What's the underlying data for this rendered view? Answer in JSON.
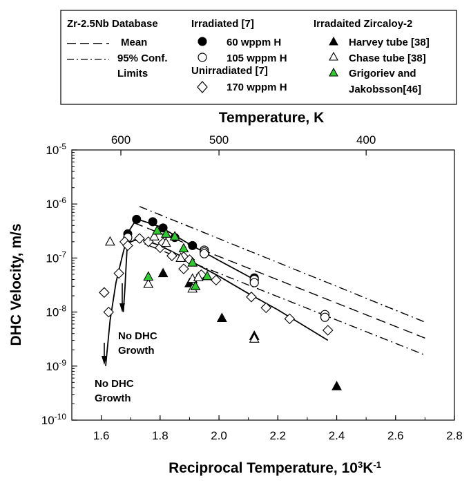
{
  "chart_data": {
    "type": "scatter",
    "xlabel": "Reciprocal Temperature, 10",
    "xlabel_sup1": "3",
    "xlabel_mid": "K",
    "xlabel_sup2": "-1",
    "ylabel": "DHC Velocity, m/s",
    "top_axis_label": "Temperature, K",
    "x_range": [
      1.5,
      2.8
    ],
    "y_range_log10": [
      -10,
      -5
    ],
    "y_scale": "log",
    "x_ticks": [
      1.6,
      1.8,
      2.0,
      2.2,
      2.4,
      2.6,
      2.8
    ],
    "x_tick_labels": [
      "1.6",
      "1.8",
      "2.0",
      "2.2",
      "2.4",
      "2.6",
      "2.8"
    ],
    "y_tick_base": "10",
    "y_tick_exponents": [
      "-10",
      "-9",
      "-8",
      "-7",
      "-6",
      "-5"
    ],
    "top_ticks_K": [
      600,
      500,
      400
    ],
    "top_tick_labels": [
      "600",
      "500",
      "400"
    ],
    "grid": false,
    "legend_position": "top",
    "legend": {
      "col1_title": "Zr-2.5Nb Database",
      "mean_label": "Mean",
      "conf_label_1": "95% Conf.",
      "conf_label_2": "Limits",
      "col2_title": "Irradiated [7]",
      "s60_label": "60 wppm H",
      "s105_label": "105 wppm H",
      "col2_title_b": "Unirradiated [7]",
      "s170_label": "170 wppm H",
      "col3_title": "Irradaited Zircaloy-2",
      "harvey_label": "Harvey tube [38]",
      "chase_label": "Chase tube [38]",
      "grig_label_1": "Grigoriev and",
      "grig_label_2": "Jakobsson[46]"
    },
    "annotations": [
      {
        "id": "nodhc1",
        "line1": "No DHC",
        "line2": "Growth"
      },
      {
        "id": "nodhc2",
        "line1": "No DHC",
        "line2": "Growth"
      }
    ],
    "colors": {
      "green": "#2ecc2e",
      "black": "#000000"
    },
    "series": [
      {
        "name": "60 wppm H",
        "marker": "filled-circle",
        "x": [
          1.69,
          1.72,
          1.775,
          1.81,
          1.85,
          1.91,
          2.12
        ],
        "y": [
          2.8e-07,
          5.2e-07,
          4.7e-07,
          3.6e-07,
          2.4e-07,
          1.7e-07,
          4.3e-08
        ]
      },
      {
        "name": "105 wppm H",
        "marker": "open-circle",
        "x": [
          1.69,
          1.95,
          1.95,
          1.95,
          2.12,
          2.12,
          2.36,
          2.36
        ],
        "y": [
          2.4e-07,
          1.4e-07,
          1.3e-07,
          1.2e-07,
          4e-08,
          3.5e-08,
          9e-09,
          8e-09
        ]
      },
      {
        "name": "170 wppm H",
        "marker": "open-diamond",
        "x": [
          1.61,
          1.625,
          1.66,
          1.68,
          1.69,
          1.73,
          1.76,
          1.8,
          1.81,
          1.84,
          1.88,
          1.88,
          1.9,
          1.94,
          1.99,
          2.11,
          2.16,
          2.24,
          2.37
        ],
        "y": [
          2.3e-08,
          1e-08,
          5.2e-08,
          2e-07,
          1.7e-07,
          2.3e-07,
          2e-07,
          1.55e-07,
          1.9e-07,
          1.1e-07,
          6.3e-08,
          1.05e-07,
          9.3e-08,
          4.9e-08,
          3.9e-08,
          1.9e-08,
          1.2e-08,
          7.5e-09,
          4.6e-09
        ]
      },
      {
        "name": "Harvey tube [38]",
        "marker": "filled-triangle",
        "x": [
          1.81,
          1.9,
          2.01,
          2.12,
          2.4
        ],
        "y": [
          5.2e-08,
          3.4e-08,
          7.7e-09,
          3.6e-09,
          4.2e-10
        ]
      },
      {
        "name": "Chase tube [38]",
        "marker": "open-triangle",
        "x": [
          1.63,
          1.76,
          1.78,
          1.82,
          1.87,
          1.91,
          1.91,
          1.93,
          2.12
        ],
        "y": [
          2e-07,
          3.3e-08,
          2.5e-07,
          1.9e-07,
          1e-07,
          2.7e-08,
          4.1e-08,
          4.4e-08,
          3.2e-09
        ]
      },
      {
        "name": "Grigoriev and Jakobsson[46]",
        "marker": "green-triangle",
        "x": [
          1.76,
          1.79,
          1.82,
          1.85,
          1.88,
          1.91,
          1.92,
          1.96
        ],
        "y": [
          4.5e-08,
          3.2e-07,
          2.8e-07,
          2.5e-07,
          1.5e-07,
          8.2e-08,
          3e-08,
          4.6e-08
        ]
      }
    ],
    "curves": {
      "mean": {
        "style": "dashed",
        "x": [
          1.71,
          2.7
        ],
        "y": [
          4.5e-07,
          3.3e-09
        ]
      },
      "upper_conf": {
        "style": "dashdot",
        "x": [
          1.73,
          2.7
        ],
        "y": [
          9e-07,
          6.5e-09
        ]
      },
      "lower_conf": {
        "style": "dashdot",
        "x": [
          1.71,
          2.7
        ],
        "y": [
          2.2e-07,
          1.6e-09
        ]
      },
      "fit_60": {
        "style": "solid",
        "x": [
          1.69,
          1.72,
          1.8,
          1.9,
          2.0,
          2.12
        ],
        "y": [
          2.9e-07,
          5.3e-07,
          3.8e-07,
          1.8e-07,
          9e-08,
          4e-08
        ]
      },
      "fit_170": {
        "style": "solid",
        "x": [
          1.69,
          1.73,
          1.8,
          1.9,
          2.0,
          2.1,
          2.2,
          2.37
        ],
        "y": [
          1.9e-07,
          2.3e-07,
          1.7e-07,
          9e-08,
          4.6e-08,
          2.2e-08,
          1.1e-08,
          3e-09
        ]
      },
      "rise_1": {
        "style": "solid",
        "x": [
          1.615,
          1.63,
          1.65,
          1.67,
          1.685
        ],
        "y": [
          1e-09,
          7e-09,
          3.5e-08,
          1e-07,
          2.1e-07
        ]
      },
      "rise_2": {
        "style": "solid",
        "x": [
          1.69,
          1.685,
          1.68,
          1.675
        ],
        "y": [
          2.5e-07,
          8e-08,
          2.5e-08,
          1e-08
        ]
      }
    }
  }
}
